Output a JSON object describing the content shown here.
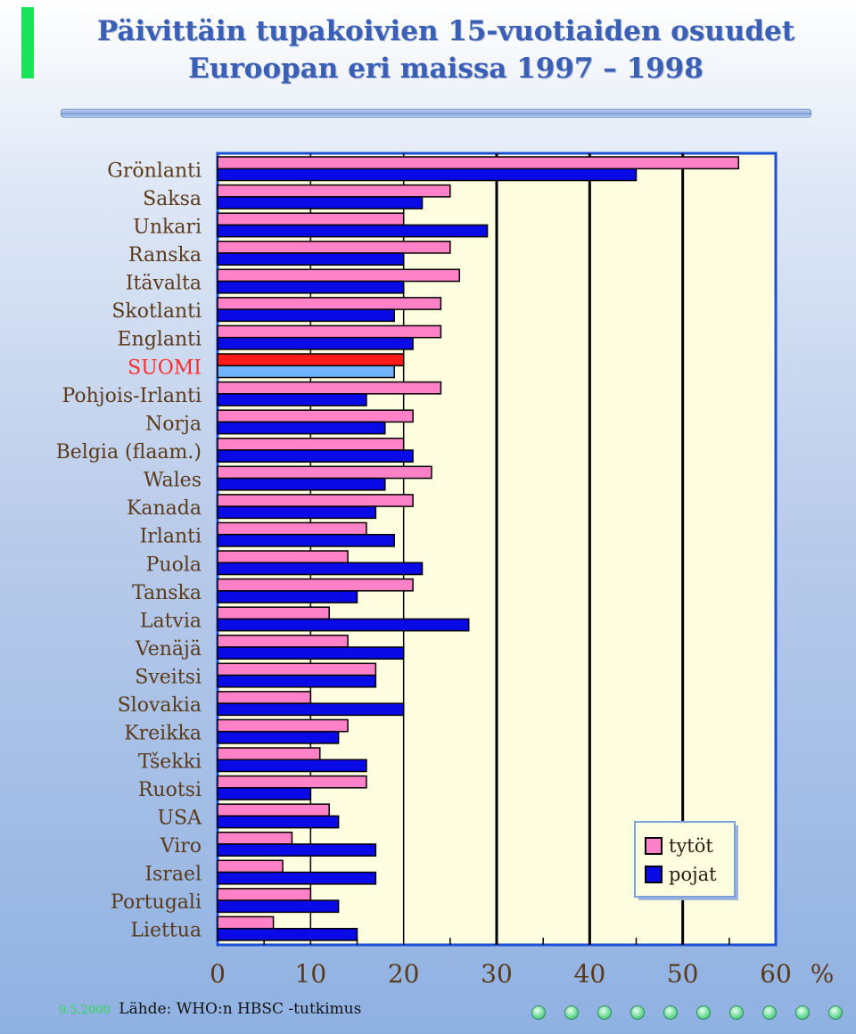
{
  "page": {
    "title_line1": "Päivittäin tupakoivien 15-vuotiaiden osuudet",
    "title_line2": "Euroopan eri maissa 1997 – 1998",
    "footer_date": "9.5.2000",
    "footer_source": "Lähde: WHO:n HBSC -tutkimus"
  },
  "colors": {
    "girls": "#ff82c8",
    "boys": "#0a0ae6",
    "suomi_girls": "#ff1a1a",
    "suomi_boys": "#6fb2ff",
    "suomi_label": "#ff2a2a",
    "plot_bg": "#fffde0",
    "label": "#5a3a1a",
    "axis_text": "#5a3a1a"
  },
  "chart_data": {
    "type": "bar",
    "orientation": "horizontal",
    "categories": [
      "Grönlanti",
      "Saksa",
      "Unkari",
      "Ranska",
      "Itävalta",
      "Skotlanti",
      "Englanti",
      "SUOMI",
      "Pohjois-Irlanti",
      "Norja",
      "Belgia (flaam.)",
      "Wales",
      "Kanada",
      "Irlanti",
      "Puola",
      "Tanska",
      "Latvia",
      "Venäjä",
      "Sveitsi",
      "Slovakia",
      "Kreikka",
      "Tšekki",
      "Ruotsi",
      "USA",
      "Viro",
      "Israel",
      "Portugali",
      "Liettua"
    ],
    "highlight_category": "SUOMI",
    "series": [
      {
        "name": "tytöt",
        "values": [
          56,
          25,
          20,
          25,
          26,
          24,
          24,
          20,
          24,
          21,
          20,
          23,
          21,
          16,
          14,
          21,
          12,
          14,
          17,
          10,
          14,
          11,
          16,
          12,
          8,
          7,
          10,
          6
        ]
      },
      {
        "name": "pojat",
        "values": [
          45,
          22,
          29,
          20,
          20,
          19,
          21,
          19,
          16,
          18,
          21,
          18,
          17,
          19,
          22,
          15,
          27,
          20,
          17,
          20,
          13,
          16,
          10,
          13,
          17,
          17,
          13,
          15
        ]
      }
    ],
    "x_ticks": [
      "0",
      "10",
      "20",
      "30",
      "40",
      "50",
      "60"
    ],
    "x_unit": "%",
    "xlim": [
      0,
      60
    ],
    "grid": true,
    "legend_position": "bottom-right"
  }
}
